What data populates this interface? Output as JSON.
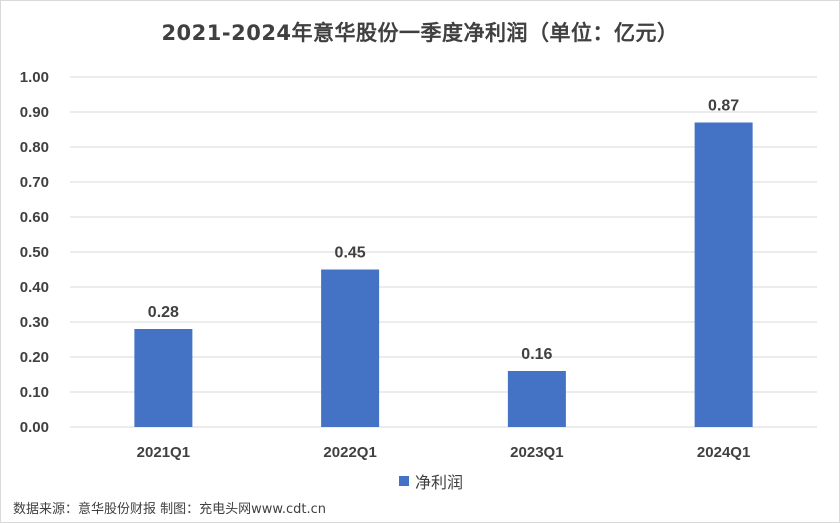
{
  "chart_data": {
    "type": "bar",
    "title": "2021-2024年意华股份一季度净利润（单位：亿元）",
    "categories": [
      "2021Q1",
      "2022Q1",
      "2023Q1",
      "2024Q1"
    ],
    "series": [
      {
        "name": "净利润",
        "values": [
          0.28,
          0.45,
          0.16,
          0.87
        ],
        "color": "#4472c4"
      }
    ],
    "data_labels": [
      "0.28",
      "0.45",
      "0.16",
      "0.87"
    ],
    "y_ticks": [
      "0.00",
      "0.10",
      "0.20",
      "0.30",
      "0.40",
      "0.50",
      "0.60",
      "0.70",
      "0.80",
      "0.90",
      "1.00"
    ],
    "ylim": [
      0,
      1.0
    ],
    "grid": true,
    "legend_position": "bottom"
  },
  "source_note": "数据来源：意华股份财报 制图：充电头网www.cdt.cn"
}
